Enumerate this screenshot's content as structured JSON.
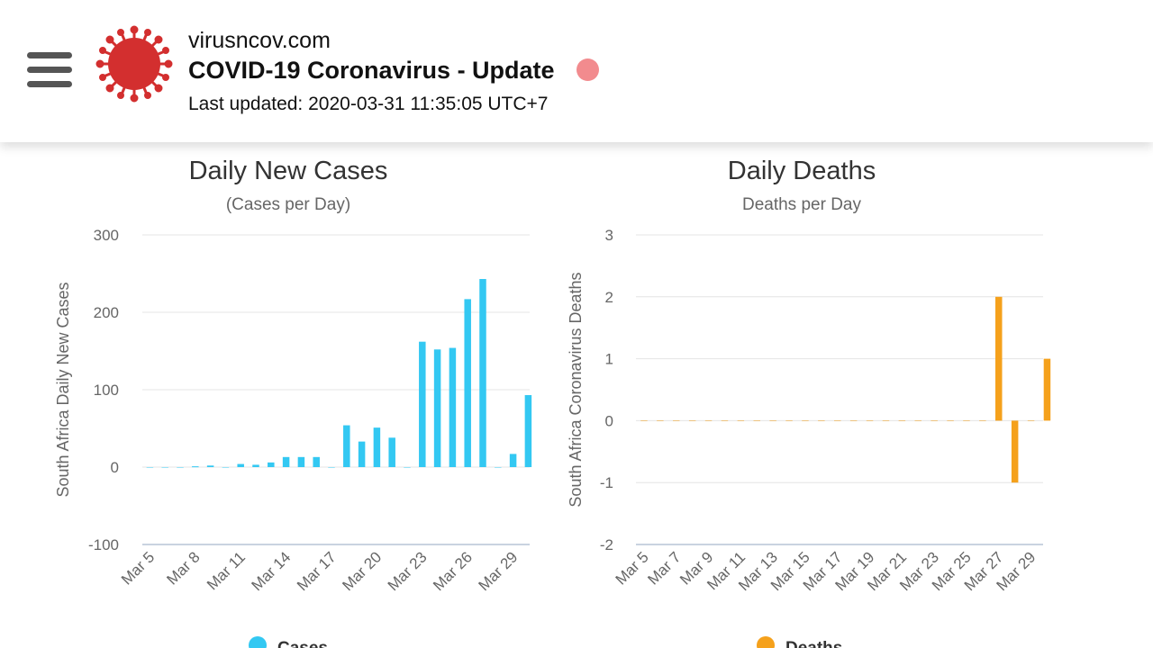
{
  "header": {
    "site": "virusncov.com",
    "title": "COVID-19 Coronavirus - Update",
    "last_updated": "Last updated: 2020-03-31 11:35:05 UTC+7",
    "logo_icon": "virus-icon",
    "menu_icon": "hamburger-menu-icon",
    "live_dot_color": "#f28b8e"
  },
  "chart_data": [
    {
      "type": "bar",
      "title": "Daily New Cases",
      "subtitle": "(Cases per Day)",
      "ylabel": "South Africa Daily New Cases",
      "ylim": [
        -100,
        300
      ],
      "yticks": [
        300,
        200,
        100,
        0,
        -100
      ],
      "categories": [
        "Mar 5",
        "Mar 6",
        "Mar 7",
        "Mar 8",
        "Mar 9",
        "Mar 10",
        "Mar 11",
        "Mar 12",
        "Mar 13",
        "Mar 14",
        "Mar 15",
        "Mar 16",
        "Mar 17",
        "Mar 18",
        "Mar 19",
        "Mar 20",
        "Mar 21",
        "Mar 22",
        "Mar 23",
        "Mar 24",
        "Mar 25",
        "Mar 26",
        "Mar 27",
        "Mar 28",
        "Mar 29",
        "Mar 30"
      ],
      "xtick_labels": [
        "Mar 5",
        "Mar 8",
        "Mar 11",
        "Mar 14",
        "Mar 17",
        "Mar 20",
        "Mar 23",
        "Mar 26",
        "Mar 29"
      ],
      "series": [
        {
          "name": "Cases",
          "color": "#33c8f2",
          "values": [
            0,
            0,
            0,
            1,
            2,
            0,
            4,
            3,
            6,
            13,
            13,
            13,
            0,
            54,
            33,
            51,
            38,
            0,
            162,
            152,
            154,
            217,
            243,
            0,
            17,
            93
          ]
        }
      ],
      "legend": "bottom-center",
      "grid": true
    },
    {
      "type": "bar",
      "title": "Daily Deaths",
      "subtitle": "Deaths per Day",
      "ylabel": "South Africa Coronavirus Deaths",
      "ylim": [
        -2,
        3
      ],
      "yticks": [
        3,
        2,
        1,
        0,
        -1,
        -2
      ],
      "categories": [
        "Mar 5",
        "Mar 6",
        "Mar 7",
        "Mar 8",
        "Mar 9",
        "Mar 10",
        "Mar 11",
        "Mar 12",
        "Mar 13",
        "Mar 14",
        "Mar 15",
        "Mar 16",
        "Mar 17",
        "Mar 18",
        "Mar 19",
        "Mar 20",
        "Mar 21",
        "Mar 22",
        "Mar 23",
        "Mar 24",
        "Mar 25",
        "Mar 26",
        "Mar 27",
        "Mar 28",
        "Mar 29",
        "Mar 30"
      ],
      "xtick_labels": [
        "Mar 5",
        "Mar 7",
        "Mar 9",
        "Mar 11",
        "Mar 13",
        "Mar 15",
        "Mar 17",
        "Mar 19",
        "Mar 21",
        "Mar 23",
        "Mar 25",
        "Mar 27",
        "Mar 29"
      ],
      "series": [
        {
          "name": "Deaths",
          "color": "#f5a11c",
          "values": [
            0,
            0,
            0,
            0,
            0,
            0,
            0,
            0,
            0,
            0,
            0,
            0,
            0,
            0,
            0,
            0,
            0,
            0,
            0,
            0,
            0,
            0,
            2,
            -1,
            0,
            1
          ]
        }
      ],
      "legend": "bottom-center",
      "grid": true
    }
  ]
}
